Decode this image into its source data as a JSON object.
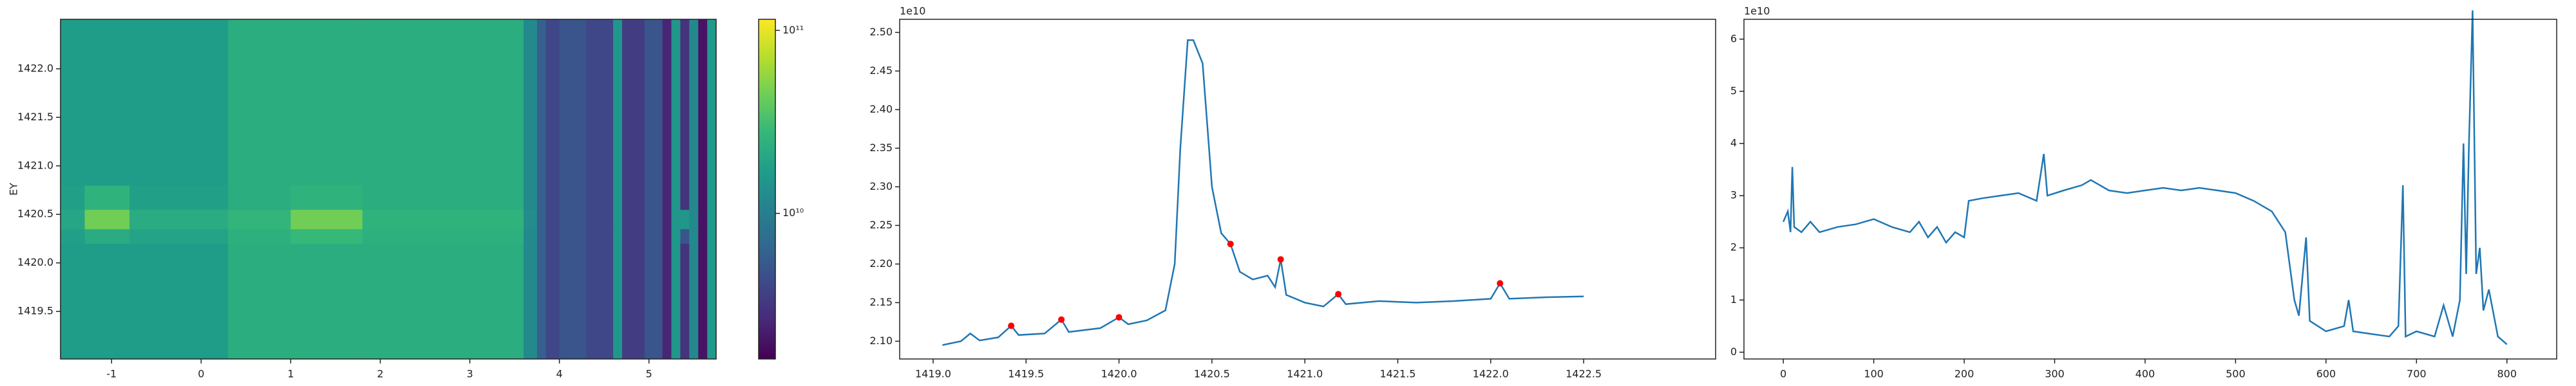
{
  "chart_data": [
    {
      "type": "heatmap",
      "ylabel": "EY",
      "x_edges": [
        -1.57,
        -1.3,
        -0.8,
        0.3,
        1.0,
        1.8,
        3.6,
        3.75,
        3.85,
        4.0,
        4.3,
        4.6,
        4.7,
        4.95,
        5.15,
        5.25,
        5.35,
        5.45,
        5.55,
        5.65,
        5.75
      ],
      "y_edges": [
        1419.01,
        1420.2,
        1420.35,
        1420.55,
        1420.8,
        1422.51
      ],
      "z": [
        [
          17000000000.0,
          17000000000.0,
          17000000000.0,
          23000000000.0,
          23000000000.0,
          23000000000.0,
          12000000000.0,
          6000000000.0,
          4000000000.0,
          5000000000.0,
          4000000000.0,
          15000000000.0,
          3500000000.0,
          5000000000.0,
          2500000000.0,
          15000000000.0,
          3000000000.0,
          12000000000.0,
          2000000000.0,
          16000000000.0
        ],
        [
          18000000000.0,
          22000000000.0,
          19000000000.0,
          24000000000.0,
          28000000000.0,
          24000000000.0,
          12000000000.0,
          6000000000.0,
          4000000000.0,
          5000000000.0,
          4000000000.0,
          15000000000.0,
          3500000000.0,
          5000000000.0,
          2500000000.0,
          15000000000.0,
          5000000000.0,
          12000000000.0,
          2000000000.0,
          16000000000.0
        ],
        [
          20000000000.0,
          45000000000.0,
          22000000000.0,
          26000000000.0,
          45000000000.0,
          25000000000.0,
          13000000000.0,
          6000000000.0,
          4000000000.0,
          5000000000.0,
          4000000000.0,
          15000000000.0,
          3500000000.0,
          5000000000.0,
          2500000000.0,
          15000000000.0,
          15000000000.0,
          12000000000.0,
          2000000000.0,
          16000000000.0
        ],
        [
          18000000000.0,
          25000000000.0,
          18000000000.0,
          23000000000.0,
          25000000000.0,
          23000000000.0,
          12000000000.0,
          6000000000.0,
          4000000000.0,
          5000000000.0,
          4000000000.0,
          15000000000.0,
          3500000000.0,
          5000000000.0,
          2500000000.0,
          15000000000.0,
          3000000000.0,
          12000000000.0,
          2000000000.0,
          16000000000.0
        ],
        [
          17000000000.0,
          17000000000.0,
          17000000000.0,
          23000000000.0,
          23000000000.0,
          23000000000.0,
          12000000000.0,
          6000000000.0,
          4000000000.0,
          5000000000.0,
          4000000000.0,
          15000000000.0,
          3500000000.0,
          5000000000.0,
          2500000000.0,
          15000000000.0,
          3000000000.0,
          12000000000.0,
          2000000000.0,
          16000000000.0
        ]
      ],
      "xlim": [
        -1.57,
        5.75
      ],
      "xticks": [
        -1,
        0,
        1,
        2,
        3,
        4,
        5
      ],
      "ylim": [
        1419.01,
        1422.51
      ],
      "yticks": [
        1419.5,
        {
          "value": 1420,
          "label": "1420.0"
        },
        1420.5,
        {
          "value": 1421,
          "label": "1421.0"
        },
        1421.5,
        {
          "value": 1422,
          "label": "1422.0"
        }
      ],
      "zlim": [
        1600000000.0,
        115000000000.0
      ],
      "zscale": "log",
      "zticks": [
        {
          "value": 10000000000.0,
          "label": "10¹⁰"
        },
        {
          "value": 100000000000.0,
          "label": "10¹¹"
        }
      ]
    },
    {
      "type": "line",
      "offset_text": "1e10",
      "series": [
        {
          "color": "#1f77b4",
          "x": [
            1419.05,
            1419.15,
            1419.2,
            1419.25,
            1419.35,
            1419.42,
            1419.46,
            1419.6,
            1419.69,
            1419.73,
            1419.9,
            1420.0,
            1420.05,
            1420.15,
            1420.25,
            1420.3,
            1420.33,
            1420.37,
            1420.4,
            1420.45,
            1420.5,
            1420.55,
            1420.6,
            1420.65,
            1420.72,
            1420.8,
            1420.84,
            1420.87,
            1420.9,
            1421.0,
            1421.1,
            1421.18,
            1421.22,
            1421.4,
            1421.6,
            1421.8,
            1422.0,
            1422.05,
            1422.1,
            1422.3,
            1422.5
          ],
          "values": [
            2.095,
            2.1,
            2.11,
            2.101,
            2.105,
            2.12,
            2.108,
            2.11,
            2.128,
            2.112,
            2.117,
            2.131,
            2.122,
            2.127,
            2.14,
            2.2,
            2.35,
            2.49,
            2.49,
            2.46,
            2.3,
            2.24,
            2.226,
            2.19,
            2.18,
            2.185,
            2.17,
            2.206,
            2.16,
            2.15,
            2.145,
            2.161,
            2.148,
            2.152,
            2.15,
            2.152,
            2.155,
            2.175,
            2.155,
            2.157,
            2.158
          ]
        },
        {
          "color": "#ff0000",
          "marker": true,
          "x": [
            1419.42,
            1419.69,
            1420.0,
            1420.6,
            1420.87,
            1421.18,
            1422.05
          ],
          "values": [
            2.12,
            2.128,
            2.131,
            2.226,
            2.206,
            2.161,
            2.175
          ]
        }
      ],
      "xlim": [
        1418.82,
        1423.21
      ],
      "xticks": [
        {
          "value": 1419,
          "label": "1419.0"
        },
        1419.5,
        {
          "value": 1420,
          "label": "1420.0"
        },
        1420.5,
        {
          "value": 1421,
          "label": "1421.0"
        },
        1421.5,
        {
          "value": 1422,
          "label": "1422.0"
        },
        1422.5
      ],
      "ylim": [
        2.077,
        2.517
      ],
      "yticks": [
        {
          "value": 2.1,
          "label": "2.10"
        },
        2.15,
        {
          "value": 2.2,
          "label": "2.20"
        },
        2.25,
        {
          "value": 2.3,
          "label": "2.30"
        },
        2.35,
        {
          "value": 2.4,
          "label": "2.40"
        },
        2.45,
        {
          "value": 2.5,
          "label": "2.50"
        }
      ]
    },
    {
      "type": "line",
      "offset_text": "1e10",
      "series": [
        {
          "color": "#1f77b4",
          "x": [
            0,
            5,
            8,
            10,
            12,
            20,
            30,
            40,
            60,
            80,
            100,
            120,
            140,
            150,
            160,
            170,
            180,
            190,
            200,
            205,
            220,
            240,
            260,
            280,
            288,
            292,
            310,
            330,
            340,
            360,
            380,
            400,
            420,
            440,
            460,
            480,
            500,
            520,
            540,
            555,
            565,
            570,
            578,
            582,
            600,
            620,
            625,
            630,
            650,
            670,
            680,
            685,
            688,
            700,
            720,
            730,
            740,
            748,
            752,
            755,
            758,
            762,
            766,
            770,
            774,
            780,
            790,
            800
          ],
          "values": [
            2.5,
            2.7,
            2.3,
            3.55,
            2.4,
            2.3,
            2.5,
            2.3,
            2.4,
            2.45,
            2.55,
            2.4,
            2.3,
            2.5,
            2.2,
            2.4,
            2.1,
            2.3,
            2.2,
            2.9,
            2.95,
            3.0,
            3.05,
            2.9,
            3.8,
            3.0,
            3.1,
            3.2,
            3.3,
            3.1,
            3.05,
            3.1,
            3.15,
            3.1,
            3.15,
            3.1,
            3.05,
            2.9,
            2.7,
            2.3,
            1.0,
            0.7,
            2.2,
            0.6,
            0.4,
            0.5,
            1.0,
            0.4,
            0.35,
            0.3,
            0.5,
            3.2,
            0.3,
            0.4,
            0.3,
            0.9,
            0.3,
            1.0,
            4.0,
            1.5,
            4.0,
            6.55,
            1.5,
            2.0,
            0.8,
            1.2,
            0.3,
            0.15
          ]
        }
      ],
      "xlim": [
        -43.5,
        855
      ],
      "xticks": [
        0,
        100,
        200,
        300,
        400,
        500,
        600,
        700,
        800
      ],
      "ylim": [
        -0.13,
        6.38
      ],
      "yticks": [
        0,
        1,
        2,
        3,
        4,
        5,
        6
      ]
    }
  ]
}
